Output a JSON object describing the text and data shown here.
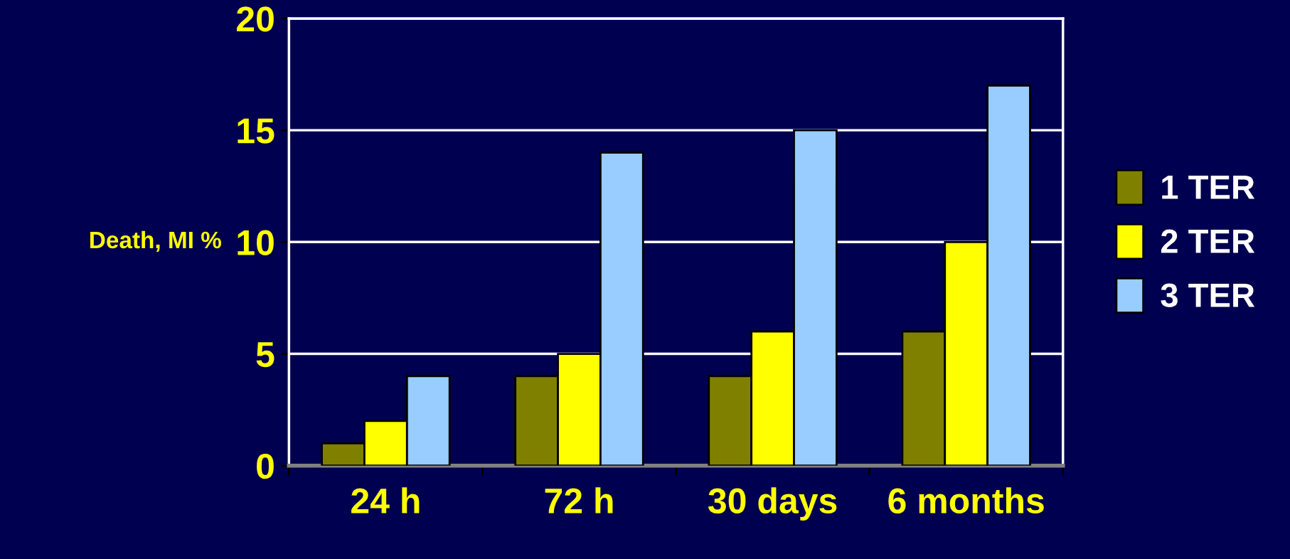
{
  "chart_data": {
    "type": "bar",
    "ylabel": "Death, MI %",
    "categories": [
      "24 h",
      "72 h",
      "30 days",
      "6 months"
    ],
    "series": [
      {
        "name": "1 TER",
        "color": "#808000",
        "values": [
          1,
          4,
          4,
          6
        ]
      },
      {
        "name": "2 TER",
        "color": "#ffff00",
        "values": [
          2,
          5,
          6,
          10
        ]
      },
      {
        "name": "3 TER",
        "color": "#99ccff",
        "values": [
          4,
          14,
          15,
          17
        ]
      }
    ],
    "ylim": [
      0,
      20
    ],
    "yticks": [
      0,
      5,
      10,
      15,
      20
    ],
    "grid": "y",
    "legend": "right"
  }
}
